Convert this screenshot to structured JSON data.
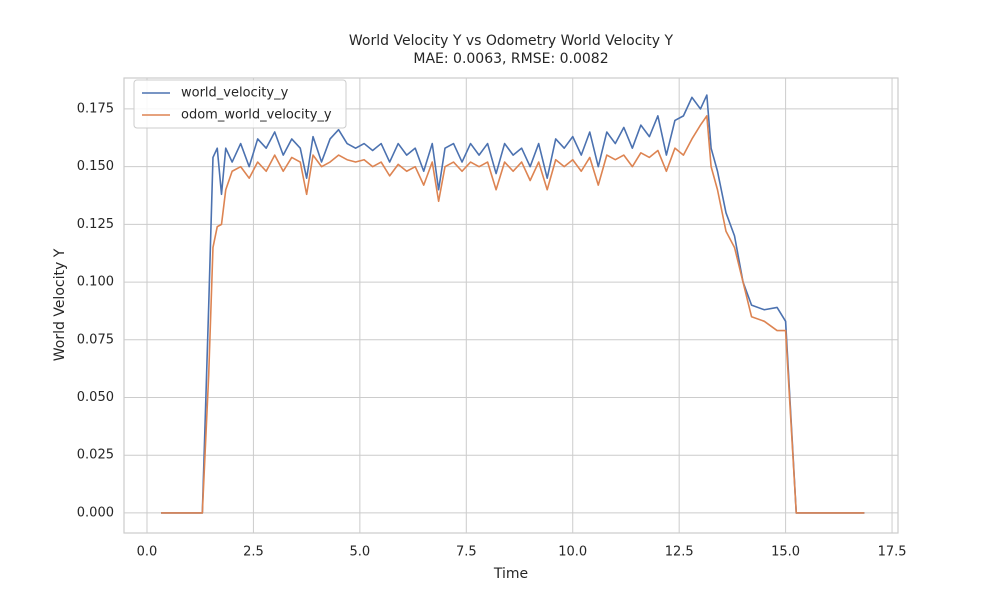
{
  "chart_data": {
    "type": "line",
    "title": "World Velocity Y vs Odometry World Velocity Y",
    "subtitle": "MAE: 0.0063, RMSE: 0.0082",
    "xlabel": "Time",
    "ylabel": "World Velocity Y",
    "xlim": [
      -0.54,
      17.64
    ],
    "xticks": [
      {
        "value": 0,
        "label": "0.0"
      },
      2.5,
      {
        "value": 5,
        "label": "5.0"
      },
      7.5,
      {
        "value": 10,
        "label": "10.0"
      },
      12.5,
      {
        "value": 15,
        "label": "15.0"
      },
      17.5
    ],
    "ylim": [
      -0.0087,
      0.1884
    ],
    "yticks": [
      {
        "value": 0,
        "label": "0.000"
      },
      {
        "value": 0.025,
        "label": "0.025"
      },
      {
        "value": 0.05,
        "label": "0.050"
      },
      {
        "value": 0.075,
        "label": "0.075"
      },
      {
        "value": 0.1,
        "label": "0.100"
      },
      {
        "value": 0.125,
        "label": "0.125"
      },
      {
        "value": 0.15,
        "label": "0.150"
      },
      {
        "value": 0.175,
        "label": "0.175"
      }
    ],
    "grid": true,
    "legend": "upper-left",
    "x": [
      0.33,
      1.0,
      1.3,
      1.45,
      1.55,
      1.65,
      1.75,
      1.85,
      2.0,
      2.2,
      2.4,
      2.6,
      2.8,
      3.0,
      3.2,
      3.4,
      3.6,
      3.75,
      3.9,
      4.1,
      4.3,
      4.5,
      4.7,
      4.9,
      5.1,
      5.3,
      5.5,
      5.7,
      5.9,
      6.1,
      6.3,
      6.5,
      6.7,
      6.85,
      7.0,
      7.2,
      7.4,
      7.6,
      7.8,
      8.0,
      8.2,
      8.4,
      8.6,
      8.8,
      9.0,
      9.2,
      9.4,
      9.6,
      9.8,
      10.0,
      10.2,
      10.4,
      10.6,
      10.8,
      11.0,
      11.2,
      11.4,
      11.6,
      11.8,
      12.0,
      12.2,
      12.4,
      12.6,
      12.8,
      13.0,
      13.15,
      13.25,
      13.4,
      13.6,
      13.8,
      14.0,
      14.2,
      14.5,
      14.8,
      15.0,
      15.25,
      16.85
    ],
    "series": [
      {
        "name": "world_velocity_y",
        "color": "#4c72b0",
        "values": [
          0,
          0,
          0,
          0.09,
          0.154,
          0.158,
          0.138,
          0.158,
          0.152,
          0.16,
          0.15,
          0.162,
          0.158,
          0.165,
          0.155,
          0.162,
          0.158,
          0.145,
          0.163,
          0.152,
          0.162,
          0.166,
          0.16,
          0.158,
          0.16,
          0.157,
          0.16,
          0.152,
          0.16,
          0.155,
          0.158,
          0.148,
          0.16,
          0.14,
          0.158,
          0.16,
          0.152,
          0.16,
          0.155,
          0.16,
          0.147,
          0.16,
          0.155,
          0.158,
          0.15,
          0.16,
          0.145,
          0.162,
          0.158,
          0.163,
          0.155,
          0.165,
          0.15,
          0.165,
          0.16,
          0.167,
          0.158,
          0.168,
          0.163,
          0.172,
          0.155,
          0.17,
          0.172,
          0.18,
          0.175,
          0.181,
          0.158,
          0.148,
          0.13,
          0.12,
          0.1,
          0.09,
          0.088,
          0.089,
          0.083,
          0,
          0
        ]
      },
      {
        "name": "odom_world_velocity_y",
        "color": "#dd8452",
        "values": [
          0,
          0,
          0,
          0.06,
          0.115,
          0.124,
          0.125,
          0.14,
          0.148,
          0.15,
          0.145,
          0.152,
          0.148,
          0.155,
          0.148,
          0.154,
          0.152,
          0.138,
          0.155,
          0.15,
          0.152,
          0.155,
          0.153,
          0.152,
          0.153,
          0.15,
          0.152,
          0.146,
          0.151,
          0.148,
          0.15,
          0.142,
          0.152,
          0.135,
          0.15,
          0.152,
          0.148,
          0.152,
          0.15,
          0.152,
          0.14,
          0.152,
          0.148,
          0.152,
          0.144,
          0.152,
          0.14,
          0.153,
          0.15,
          0.153,
          0.148,
          0.154,
          0.142,
          0.155,
          0.153,
          0.155,
          0.15,
          0.156,
          0.154,
          0.157,
          0.148,
          0.158,
          0.155,
          0.162,
          0.168,
          0.172,
          0.15,
          0.14,
          0.122,
          0.115,
          0.1,
          0.085,
          0.083,
          0.079,
          0.079,
          0,
          0
        ]
      }
    ]
  }
}
